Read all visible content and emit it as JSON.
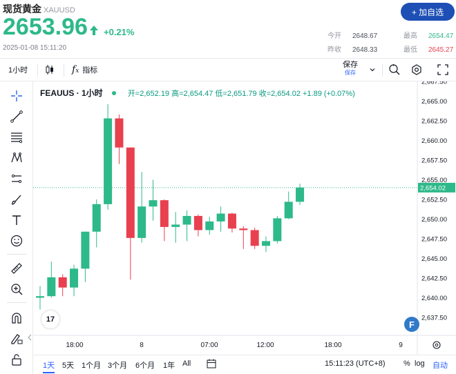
{
  "quote": {
    "name": "现货黄金",
    "code": "XAUUSD",
    "add_watch": "+ 加自选",
    "price": "2653.96",
    "change_pct": "+0.21%",
    "timestamp": "2025-01-08 15:11:20",
    "open_label": "今开",
    "open": "2648.67",
    "high_label": "最高",
    "high": "2654.47",
    "prev_label": "昨收",
    "prev": "2648.33",
    "low_label": "最低",
    "low": "2645.27",
    "up_color": "#2db98a",
    "down_color": "#e8404f"
  },
  "toolbar": {
    "interval": "1小时",
    "indicators": "指标",
    "save": "保存",
    "save_sub": "保存"
  },
  "legend": {
    "symbol": "FEAUUS · 1小时",
    "ohlc": "开=2,652.19 高=2,654.47 低=2,651.79 收=2,654.02 +1.89 (+0.07%)"
  },
  "bottom": {
    "ranges": [
      "1天",
      "5天",
      "1个月",
      "3个月",
      "6个月",
      "1年",
      "All"
    ],
    "active_range": "1天",
    "clock": "15:11:23 (UTC+8)",
    "pct": "%",
    "log": "log",
    "auto": "自动"
  },
  "chart_data": {
    "type": "candlestick",
    "y_ticks": [
      "2,667.50",
      "2,665.00",
      "2,662.50",
      "2,660.00",
      "2,657.50",
      "2,655.00",
      "2,652.50",
      "2,650.00",
      "2,647.50",
      "2,645.00",
      "2,642.50",
      "2,640.00",
      "2,637.50"
    ],
    "x_ticks": [
      "18:00",
      "8",
      "07:00",
      "12:00",
      "18:00",
      "9"
    ],
    "last_price_label": "2,654.02",
    "candles": [
      {
        "o": 2640.0,
        "h": 2641.5,
        "l": 2638.5,
        "c": 2640.2
      },
      {
        "o": 2640.2,
        "h": 2644.6,
        "l": 2640.0,
        "c": 2642.6
      },
      {
        "o": 2642.6,
        "h": 2643.0,
        "l": 2640.2,
        "c": 2641.3
      },
      {
        "o": 2641.3,
        "h": 2644.2,
        "l": 2640.2,
        "c": 2643.7
      },
      {
        "o": 2643.7,
        "h": 2648.4,
        "l": 2642.0,
        "c": 2648.4
      },
      {
        "o": 2648.4,
        "h": 2652.5,
        "l": 2646.4,
        "c": 2651.9
      },
      {
        "o": 2651.9,
        "h": 2664.6,
        "l": 2651.2,
        "c": 2662.8
      },
      {
        "o": 2662.8,
        "h": 2663.3,
        "l": 2657.0,
        "c": 2659.1
      },
      {
        "o": 2659.1,
        "h": 2659.1,
        "l": 2642.3,
        "c": 2647.6
      },
      {
        "o": 2647.6,
        "h": 2656.0,
        "l": 2647.0,
        "c": 2651.6
      },
      {
        "o": 2651.6,
        "h": 2655.0,
        "l": 2649.8,
        "c": 2652.4
      },
      {
        "o": 2652.4,
        "h": 2652.5,
        "l": 2647.2,
        "c": 2649.0
      },
      {
        "o": 2649.0,
        "h": 2650.9,
        "l": 2647.0,
        "c": 2649.3
      },
      {
        "o": 2649.3,
        "h": 2651.1,
        "l": 2647.2,
        "c": 2650.4
      },
      {
        "o": 2650.4,
        "h": 2650.6,
        "l": 2647.8,
        "c": 2648.6
      },
      {
        "o": 2648.6,
        "h": 2650.3,
        "l": 2648.0,
        "c": 2649.7
      },
      {
        "o": 2649.7,
        "h": 2651.6,
        "l": 2648.4,
        "c": 2650.7
      },
      {
        "o": 2650.7,
        "h": 2650.8,
        "l": 2648.3,
        "c": 2648.8
      },
      {
        "o": 2648.8,
        "h": 2649.1,
        "l": 2646.2,
        "c": 2648.6
      },
      {
        "o": 2648.6,
        "h": 2648.9,
        "l": 2646.2,
        "c": 2646.6
      },
      {
        "o": 2646.6,
        "h": 2647.8,
        "l": 2645.8,
        "c": 2647.2
      },
      {
        "o": 2647.2,
        "h": 2650.4,
        "l": 2646.9,
        "c": 2650.1
      },
      {
        "o": 2650.1,
        "h": 2653.5,
        "l": 2650.0,
        "c": 2652.2
      },
      {
        "o": 2652.2,
        "h": 2654.5,
        "l": 2651.8,
        "c": 2654.0
      }
    ]
  }
}
